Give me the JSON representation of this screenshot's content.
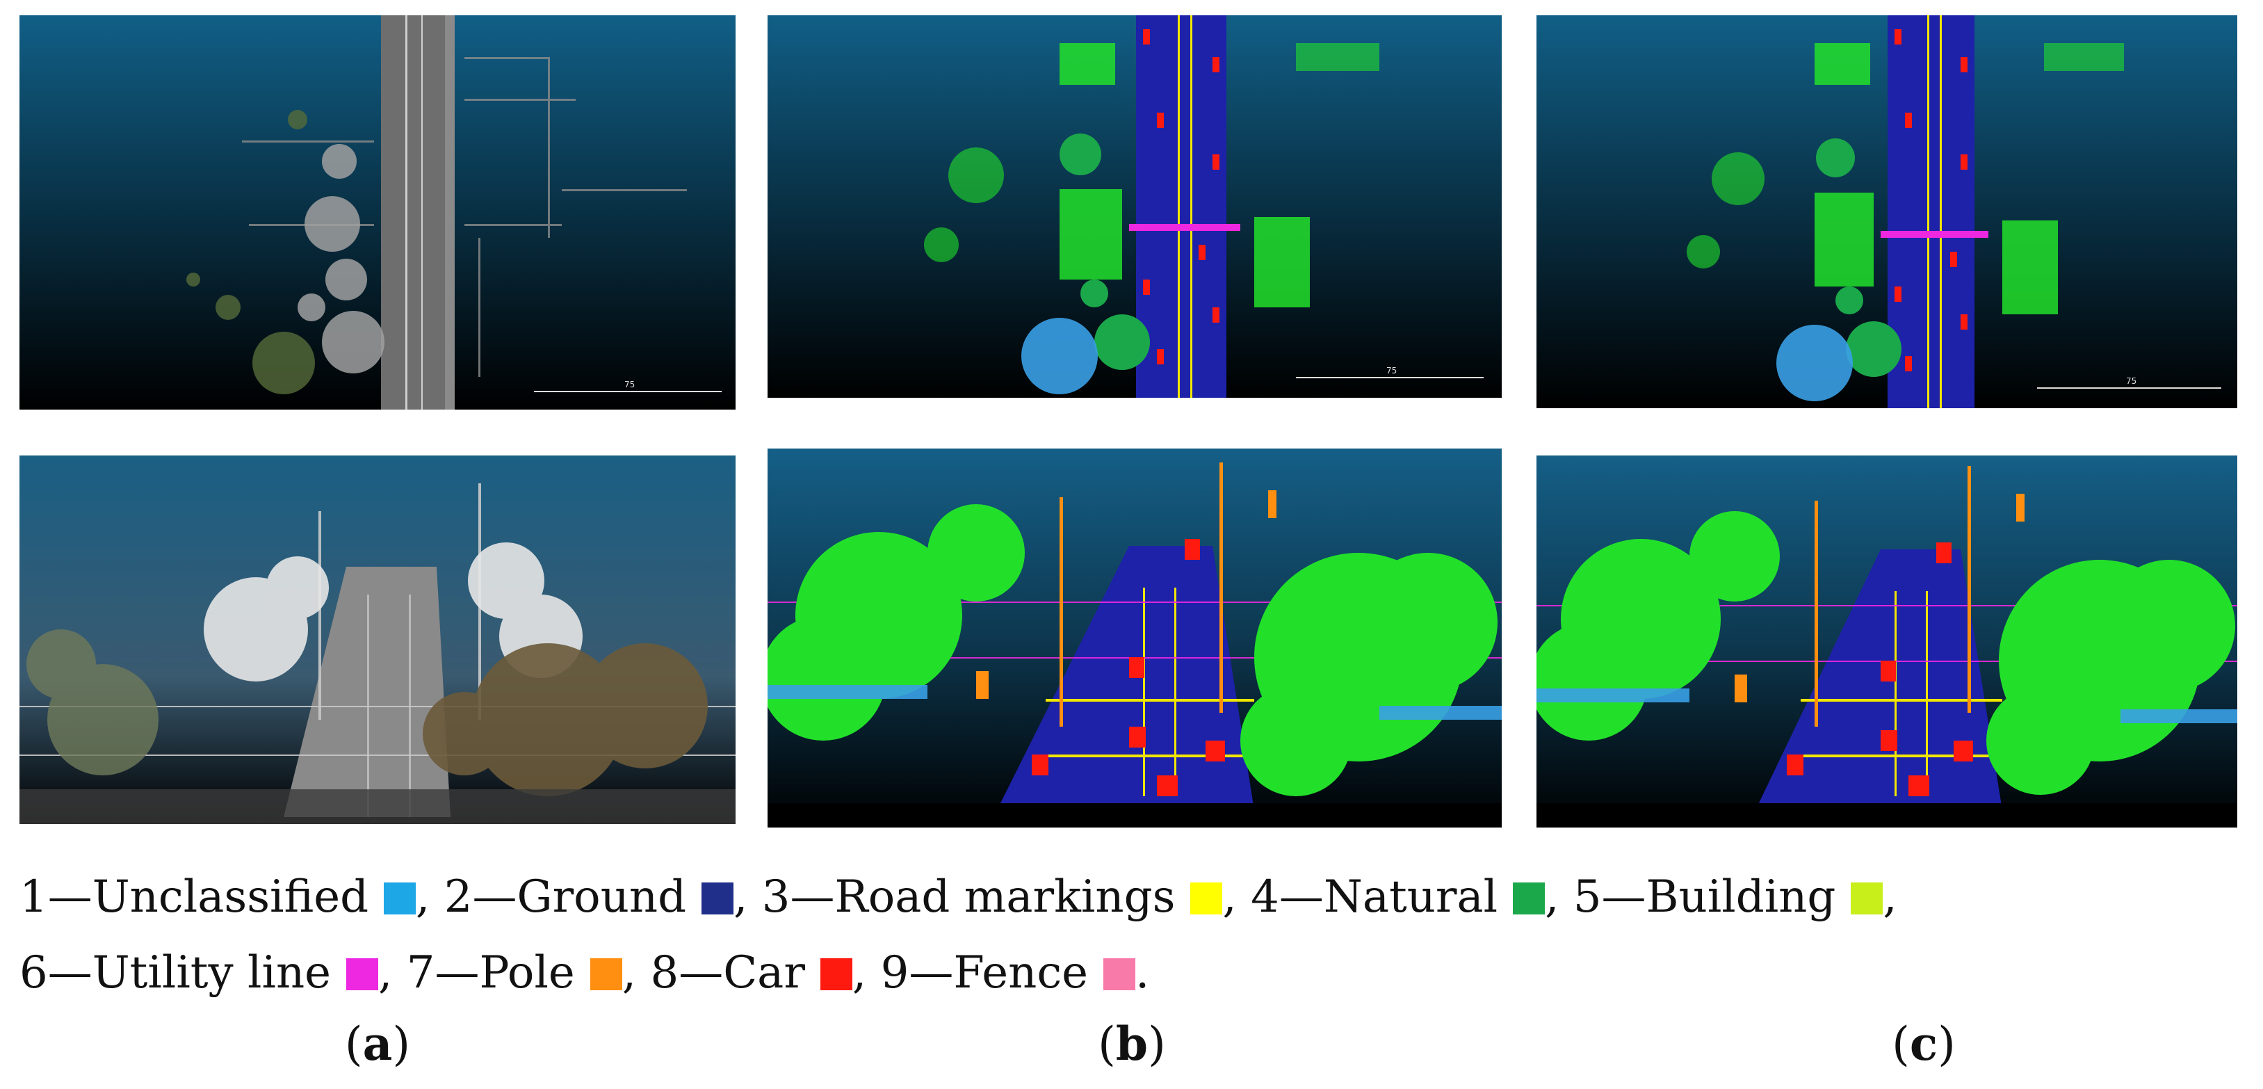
{
  "panels": [
    {
      "id": "a",
      "row": "top",
      "style": "rgb",
      "scale_label": "75"
    },
    {
      "id": "b",
      "row": "top",
      "style": "class",
      "scale_label": "75"
    },
    {
      "id": "c",
      "row": "top",
      "style": "class",
      "scale_label": "75"
    },
    {
      "id": "a",
      "row": "bottom",
      "style": "rgb"
    },
    {
      "id": "b",
      "row": "bottom",
      "style": "class"
    },
    {
      "id": "c",
      "row": "bottom",
      "style": "class"
    }
  ],
  "legend": {
    "line1": [
      {
        "text": "1—Unclassified",
        "color": "#1ea7e6",
        "sep": ","
      },
      {
        "text": "2—Ground",
        "color": "#1f2f8a",
        "sep": ","
      },
      {
        "text": "3—Road markings",
        "color": "#ffff00",
        "sep": ","
      },
      {
        "text": "4—Natural",
        "color": "#1ba84a",
        "sep": ","
      },
      {
        "text": "5—Building",
        "color": "#c8ef1a",
        "sep": ","
      }
    ],
    "line2": [
      {
        "text": "6—Utility line",
        "color": "#ee28e0",
        "sep": ","
      },
      {
        "text": "7—Pole",
        "color": "#ff8f10",
        "sep": ","
      },
      {
        "text": "8—Car",
        "color": "#ff1a10",
        "sep": ","
      },
      {
        "text": "9—Fence",
        "color": "#f77aa8",
        "sep": "."
      }
    ]
  },
  "captions": [
    {
      "open": "(",
      "letter": "a",
      "close": ")"
    },
    {
      "open": "(",
      "letter": "b",
      "close": ")"
    },
    {
      "open": "(",
      "letter": "c",
      "close": ")"
    }
  ],
  "colors": {
    "sky_top": "#0f5e86",
    "sky_bottom": "#000000",
    "ground": "#1e22a8",
    "vegetation": "#22e02a",
    "marking": "#f2e600",
    "car": "#ff1a10",
    "pole": "#ff8f10",
    "utility": "#ee28e0",
    "unclassified": "#3aa0e6"
  }
}
